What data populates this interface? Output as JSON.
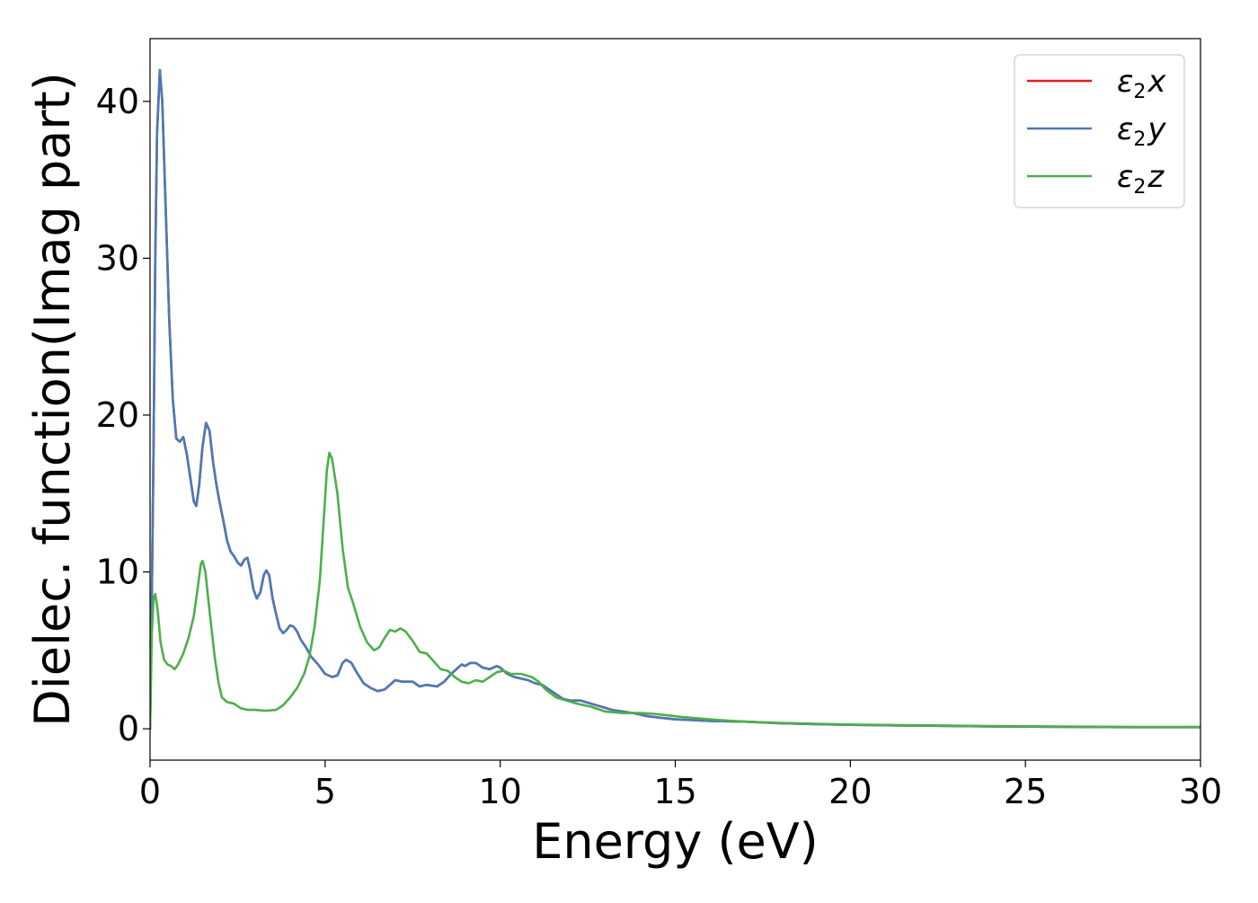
{
  "chart_data": {
    "type": "line",
    "xlabel": "Energy (eV)",
    "ylabel": "Dielec. function(Imag part)",
    "xlim": [
      0,
      30
    ],
    "ylim": [
      -2,
      44
    ],
    "x_ticks": [
      0,
      5,
      10,
      15,
      20,
      25,
      30
    ],
    "y_ticks": [
      0,
      10,
      20,
      30,
      40
    ],
    "grid": false,
    "legend_position": "top-right",
    "series": [
      {
        "name": "ε2x",
        "legend": {
          "base": "ε",
          "sub": "2",
          "axis": "x"
        },
        "color": "#e41a1c",
        "points": [
          [
            0,
            0
          ],
          [
            0.05,
            8
          ],
          [
            0.1,
            18
          ],
          [
            0.15,
            30
          ],
          [
            0.2,
            38
          ],
          [
            0.28,
            42
          ],
          [
            0.35,
            40
          ],
          [
            0.45,
            33
          ],
          [
            0.55,
            26
          ],
          [
            0.65,
            21
          ],
          [
            0.75,
            18.5
          ],
          [
            0.85,
            18.3
          ],
          [
            0.95,
            18.6
          ],
          [
            1.05,
            17.5
          ],
          [
            1.15,
            16
          ],
          [
            1.25,
            14.5
          ],
          [
            1.32,
            14.2
          ],
          [
            1.4,
            15.5
          ],
          [
            1.5,
            18
          ],
          [
            1.6,
            19.5
          ],
          [
            1.7,
            19
          ],
          [
            1.8,
            17
          ],
          [
            1.9,
            15.5
          ],
          [
            2.0,
            14.3
          ],
          [
            2.1,
            13.2
          ],
          [
            2.2,
            12
          ],
          [
            2.3,
            11.3
          ],
          [
            2.4,
            11
          ],
          [
            2.5,
            10.6
          ],
          [
            2.6,
            10.4
          ],
          [
            2.7,
            10.8
          ],
          [
            2.78,
            10.9
          ],
          [
            2.85,
            10.2
          ],
          [
            2.95,
            8.9
          ],
          [
            3.05,
            8.3
          ],
          [
            3.15,
            8.7
          ],
          [
            3.25,
            9.8
          ],
          [
            3.32,
            10.1
          ],
          [
            3.4,
            9.8
          ],
          [
            3.5,
            8.3
          ],
          [
            3.6,
            7.3
          ],
          [
            3.7,
            6.4
          ],
          [
            3.8,
            6.1
          ],
          [
            3.9,
            6.3
          ],
          [
            4.0,
            6.6
          ],
          [
            4.1,
            6.5
          ],
          [
            4.2,
            6.2
          ],
          [
            4.3,
            5.7
          ],
          [
            4.45,
            5.2
          ],
          [
            4.6,
            4.6
          ],
          [
            4.8,
            4.1
          ],
          [
            5.0,
            3.5
          ],
          [
            5.2,
            3.3
          ],
          [
            5.35,
            3.4
          ],
          [
            5.5,
            4.2
          ],
          [
            5.6,
            4.4
          ],
          [
            5.75,
            4.2
          ],
          [
            5.9,
            3.6
          ],
          [
            6.1,
            2.9
          ],
          [
            6.3,
            2.6
          ],
          [
            6.5,
            2.4
          ],
          [
            6.7,
            2.5
          ],
          [
            6.9,
            2.9
          ],
          [
            7.0,
            3.1
          ],
          [
            7.2,
            3.0
          ],
          [
            7.5,
            3.0
          ],
          [
            7.7,
            2.7
          ],
          [
            7.9,
            2.8
          ],
          [
            8.2,
            2.7
          ],
          [
            8.4,
            3.0
          ],
          [
            8.6,
            3.5
          ],
          [
            8.8,
            3.9
          ],
          [
            8.9,
            4.1
          ],
          [
            9.0,
            4.0
          ],
          [
            9.15,
            4.2
          ],
          [
            9.3,
            4.2
          ],
          [
            9.5,
            3.9
          ],
          [
            9.7,
            3.8
          ],
          [
            9.9,
            4.0
          ],
          [
            10.0,
            3.9
          ],
          [
            10.2,
            3.5
          ],
          [
            10.4,
            3.3
          ],
          [
            10.6,
            3.2
          ],
          [
            10.8,
            3.1
          ],
          [
            11.0,
            2.9
          ],
          [
            11.2,
            2.8
          ],
          [
            11.4,
            2.5
          ],
          [
            11.6,
            2.2
          ],
          [
            11.8,
            1.9
          ],
          [
            12.0,
            1.8
          ],
          [
            12.3,
            1.8
          ],
          [
            12.6,
            1.6
          ],
          [
            12.9,
            1.4
          ],
          [
            13.2,
            1.2
          ],
          [
            13.5,
            1.1
          ],
          [
            13.8,
            1.0
          ],
          [
            14.2,
            0.8
          ],
          [
            14.6,
            0.7
          ],
          [
            15.0,
            0.6
          ],
          [
            15.5,
            0.55
          ],
          [
            16.0,
            0.5
          ],
          [
            17.0,
            0.45
          ],
          [
            18.0,
            0.35
          ],
          [
            19.0,
            0.3
          ],
          [
            20.0,
            0.25
          ],
          [
            22.0,
            0.2
          ],
          [
            24.0,
            0.15
          ],
          [
            26.0,
            0.12
          ],
          [
            28.0,
            0.1
          ],
          [
            30.0,
            0.1
          ]
        ]
      },
      {
        "name": "ε2y",
        "legend": {
          "base": "ε",
          "sub": "2",
          "axis": "y"
        },
        "color": "#4a7ab8",
        "points": [
          [
            0,
            0
          ],
          [
            0.05,
            8
          ],
          [
            0.1,
            18
          ],
          [
            0.15,
            30
          ],
          [
            0.2,
            38
          ],
          [
            0.28,
            42
          ],
          [
            0.35,
            40
          ],
          [
            0.45,
            33
          ],
          [
            0.55,
            26
          ],
          [
            0.65,
            21
          ],
          [
            0.75,
            18.5
          ],
          [
            0.85,
            18.3
          ],
          [
            0.95,
            18.6
          ],
          [
            1.05,
            17.5
          ],
          [
            1.15,
            16
          ],
          [
            1.25,
            14.5
          ],
          [
            1.32,
            14.2
          ],
          [
            1.4,
            15.5
          ],
          [
            1.5,
            18
          ],
          [
            1.6,
            19.5
          ],
          [
            1.7,
            19
          ],
          [
            1.8,
            17
          ],
          [
            1.9,
            15.5
          ],
          [
            2.0,
            14.3
          ],
          [
            2.1,
            13.2
          ],
          [
            2.2,
            12
          ],
          [
            2.3,
            11.3
          ],
          [
            2.4,
            11
          ],
          [
            2.5,
            10.6
          ],
          [
            2.6,
            10.4
          ],
          [
            2.7,
            10.8
          ],
          [
            2.78,
            10.9
          ],
          [
            2.85,
            10.2
          ],
          [
            2.95,
            8.9
          ],
          [
            3.05,
            8.3
          ],
          [
            3.15,
            8.7
          ],
          [
            3.25,
            9.8
          ],
          [
            3.32,
            10.1
          ],
          [
            3.4,
            9.8
          ],
          [
            3.5,
            8.3
          ],
          [
            3.6,
            7.3
          ],
          [
            3.7,
            6.4
          ],
          [
            3.8,
            6.1
          ],
          [
            3.9,
            6.3
          ],
          [
            4.0,
            6.6
          ],
          [
            4.1,
            6.5
          ],
          [
            4.2,
            6.2
          ],
          [
            4.3,
            5.7
          ],
          [
            4.45,
            5.2
          ],
          [
            4.6,
            4.6
          ],
          [
            4.8,
            4.1
          ],
          [
            5.0,
            3.5
          ],
          [
            5.2,
            3.3
          ],
          [
            5.35,
            3.4
          ],
          [
            5.5,
            4.2
          ],
          [
            5.6,
            4.4
          ],
          [
            5.75,
            4.2
          ],
          [
            5.9,
            3.6
          ],
          [
            6.1,
            2.9
          ],
          [
            6.3,
            2.6
          ],
          [
            6.5,
            2.4
          ],
          [
            6.7,
            2.5
          ],
          [
            6.9,
            2.9
          ],
          [
            7.0,
            3.1
          ],
          [
            7.2,
            3.0
          ],
          [
            7.5,
            3.0
          ],
          [
            7.7,
            2.7
          ],
          [
            7.9,
            2.8
          ],
          [
            8.2,
            2.7
          ],
          [
            8.4,
            3.0
          ],
          [
            8.6,
            3.5
          ],
          [
            8.8,
            3.9
          ],
          [
            8.9,
            4.1
          ],
          [
            9.0,
            4.0
          ],
          [
            9.15,
            4.2
          ],
          [
            9.3,
            4.2
          ],
          [
            9.5,
            3.9
          ],
          [
            9.7,
            3.8
          ],
          [
            9.9,
            4.0
          ],
          [
            10.0,
            3.9
          ],
          [
            10.2,
            3.5
          ],
          [
            10.4,
            3.3
          ],
          [
            10.6,
            3.2
          ],
          [
            10.8,
            3.1
          ],
          [
            11.0,
            2.9
          ],
          [
            11.2,
            2.8
          ],
          [
            11.4,
            2.5
          ],
          [
            11.6,
            2.2
          ],
          [
            11.8,
            1.9
          ],
          [
            12.0,
            1.8
          ],
          [
            12.3,
            1.8
          ],
          [
            12.6,
            1.6
          ],
          [
            12.9,
            1.4
          ],
          [
            13.2,
            1.2
          ],
          [
            13.5,
            1.1
          ],
          [
            13.8,
            1.0
          ],
          [
            14.2,
            0.8
          ],
          [
            14.6,
            0.7
          ],
          [
            15.0,
            0.6
          ],
          [
            15.5,
            0.55
          ],
          [
            16.0,
            0.5
          ],
          [
            17.0,
            0.45
          ],
          [
            18.0,
            0.35
          ],
          [
            19.0,
            0.3
          ],
          [
            20.0,
            0.25
          ],
          [
            22.0,
            0.2
          ],
          [
            24.0,
            0.15
          ],
          [
            26.0,
            0.12
          ],
          [
            28.0,
            0.1
          ],
          [
            30.0,
            0.1
          ]
        ]
      },
      {
        "name": "ε2z",
        "legend": {
          "base": "ε",
          "sub": "2",
          "axis": "z"
        },
        "color": "#4daf4a",
        "points": [
          [
            0,
            0
          ],
          [
            0.05,
            6
          ],
          [
            0.1,
            8.3
          ],
          [
            0.15,
            8.6
          ],
          [
            0.22,
            7.5
          ],
          [
            0.3,
            5.5
          ],
          [
            0.4,
            4.4
          ],
          [
            0.5,
            4.1
          ],
          [
            0.6,
            4.0
          ],
          [
            0.7,
            3.8
          ],
          [
            0.8,
            4.1
          ],
          [
            0.95,
            4.8
          ],
          [
            1.1,
            5.8
          ],
          [
            1.25,
            7.2
          ],
          [
            1.35,
            8.8
          ],
          [
            1.45,
            10.5
          ],
          [
            1.5,
            10.7
          ],
          [
            1.58,
            10.0
          ],
          [
            1.7,
            7.5
          ],
          [
            1.85,
            4.5
          ],
          [
            1.95,
            3.0
          ],
          [
            2.05,
            2.0
          ],
          [
            2.2,
            1.7
          ],
          [
            2.4,
            1.6
          ],
          [
            2.6,
            1.3
          ],
          [
            2.8,
            1.2
          ],
          [
            3.0,
            1.2
          ],
          [
            3.3,
            1.15
          ],
          [
            3.6,
            1.2
          ],
          [
            3.8,
            1.5
          ],
          [
            4.0,
            2.0
          ],
          [
            4.2,
            2.6
          ],
          [
            4.4,
            3.5
          ],
          [
            4.55,
            4.6
          ],
          [
            4.7,
            6.5
          ],
          [
            4.85,
            9.5
          ],
          [
            4.95,
            13.0
          ],
          [
            5.05,
            16.5
          ],
          [
            5.12,
            17.6
          ],
          [
            5.2,
            17.2
          ],
          [
            5.35,
            15.0
          ],
          [
            5.5,
            11.5
          ],
          [
            5.65,
            9.0
          ],
          [
            5.8,
            8.0
          ],
          [
            6.0,
            6.5
          ],
          [
            6.2,
            5.5
          ],
          [
            6.4,
            5.0
          ],
          [
            6.55,
            5.2
          ],
          [
            6.7,
            5.8
          ],
          [
            6.85,
            6.3
          ],
          [
            7.0,
            6.2
          ],
          [
            7.15,
            6.4
          ],
          [
            7.3,
            6.2
          ],
          [
            7.5,
            5.6
          ],
          [
            7.7,
            4.9
          ],
          [
            7.9,
            4.8
          ],
          [
            8.1,
            4.3
          ],
          [
            8.3,
            3.8
          ],
          [
            8.5,
            3.7
          ],
          [
            8.7,
            3.3
          ],
          [
            8.9,
            3.0
          ],
          [
            9.1,
            2.9
          ],
          [
            9.3,
            3.1
          ],
          [
            9.5,
            3.0
          ],
          [
            9.7,
            3.3
          ],
          [
            9.9,
            3.6
          ],
          [
            10.1,
            3.7
          ],
          [
            10.3,
            3.5
          ],
          [
            10.6,
            3.5
          ],
          [
            10.9,
            3.3
          ],
          [
            11.1,
            3.0
          ],
          [
            11.3,
            2.5
          ],
          [
            11.6,
            2.0
          ],
          [
            11.9,
            1.8
          ],
          [
            12.2,
            1.6
          ],
          [
            12.6,
            1.4
          ],
          [
            13.0,
            1.1
          ],
          [
            13.5,
            1.0
          ],
          [
            14.0,
            1.0
          ],
          [
            14.4,
            0.95
          ],
          [
            14.8,
            0.85
          ],
          [
            15.2,
            0.75
          ],
          [
            15.7,
            0.65
          ],
          [
            16.3,
            0.55
          ],
          [
            17.0,
            0.45
          ],
          [
            18.0,
            0.38
          ],
          [
            19.0,
            0.32
          ],
          [
            20.0,
            0.27
          ],
          [
            22.0,
            0.22
          ],
          [
            24.0,
            0.17
          ],
          [
            26.0,
            0.14
          ],
          [
            28.0,
            0.12
          ],
          [
            30.0,
            0.12
          ]
        ]
      }
    ]
  }
}
